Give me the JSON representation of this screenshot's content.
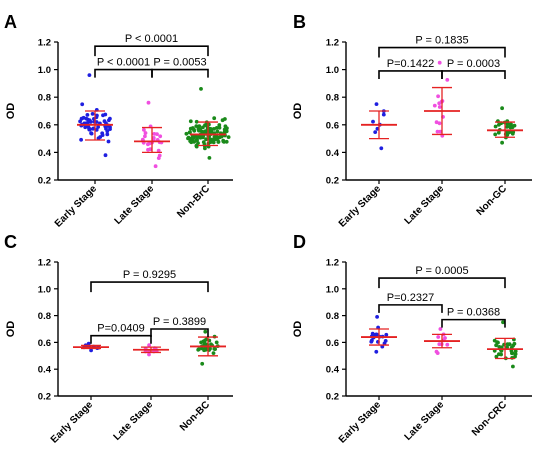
{
  "figure": {
    "colors": {
      "early_stage": "#1f1fe0",
      "late_stage": "#f04fe0",
      "non_cancer": "#1a8a1a",
      "summary_lines": "#e52222",
      "axes": "#000000"
    }
  },
  "chart_data": [
    {
      "type": "scatter",
      "panel_label": "A",
      "ylabel": "OD",
      "ylim": [
        0.2,
        1.2
      ],
      "yticks": [
        "0.2",
        "0.4",
        "0.6",
        "0.8",
        "1.0",
        "1.2"
      ],
      "categories": [
        "Early Stage",
        "Late Stage",
        "Non-BrC"
      ],
      "series": [
        {
          "category": "Early Stage",
          "n": 60,
          "mean": 0.6,
          "sd_low": 0.49,
          "sd_high": 0.7,
          "min": 0.38,
          "max": 0.96
        },
        {
          "category": "Late Stage",
          "n": 25,
          "mean": 0.48,
          "sd_low": 0.4,
          "sd_high": 0.58,
          "min": 0.3,
          "max": 0.76
        },
        {
          "category": "Non-BrC",
          "n": 110,
          "mean": 0.53,
          "sd_low": 0.45,
          "sd_high": 0.62,
          "min": 0.36,
          "max": 0.86
        }
      ],
      "comparisons": [
        {
          "pair": [
            0,
            1
          ],
          "label": "P < 0.0001",
          "y": 1.0
        },
        {
          "pair": [
            1,
            2
          ],
          "label": "P = 0.0053",
          "y": 1.0
        },
        {
          "pair": [
            0,
            2
          ],
          "label": "P < 0.0001",
          "y": 1.17
        }
      ]
    },
    {
      "type": "scatter",
      "panel_label": "B",
      "ylabel": "OD",
      "ylim": [
        0.2,
        1.2
      ],
      "yticks": [
        "0.2",
        "0.4",
        "0.6",
        "0.8",
        "1.0",
        "1.2"
      ],
      "categories": [
        "Early Stage",
        "Late Stage",
        "Non-GC"
      ],
      "series": [
        {
          "category": "Early Stage",
          "n": 8,
          "mean": 0.6,
          "sd_low": 0.5,
          "sd_high": 0.7,
          "min": 0.43,
          "max": 0.75
        },
        {
          "category": "Late Stage",
          "n": 14,
          "mean": 0.7,
          "sd_low": 0.53,
          "sd_high": 0.87,
          "min": 0.52,
          "max": 1.05
        },
        {
          "category": "Non-GC",
          "n": 30,
          "mean": 0.56,
          "sd_low": 0.51,
          "sd_high": 0.62,
          "min": 0.47,
          "max": 0.72
        }
      ],
      "comparisons": [
        {
          "pair": [
            0,
            1
          ],
          "label": "P=0.1422",
          "y": 0.99
        },
        {
          "pair": [
            1,
            2
          ],
          "label": "P = 0.0003",
          "y": 0.99
        },
        {
          "pair": [
            0,
            2
          ],
          "label": "P = 0.1835",
          "y": 1.16
        }
      ]
    },
    {
      "type": "scatter",
      "panel_label": "C",
      "ylabel": "OD",
      "ylim": [
        0.2,
        1.2
      ],
      "yticks": [
        "0.2",
        "0.4",
        "0.6",
        "0.8",
        "1.0",
        "1.2"
      ],
      "categories": [
        "Early Stage",
        "Late Stage",
        "Non-BC"
      ],
      "series": [
        {
          "category": "Early Stage",
          "n": 14,
          "mean": 0.565,
          "sd_low": 0.555,
          "sd_high": 0.578,
          "min": 0.54,
          "max": 0.59
        },
        {
          "category": "Late Stage",
          "n": 9,
          "mean": 0.545,
          "sd_low": 0.525,
          "sd_high": 0.565,
          "min": 0.51,
          "max": 0.58
        },
        {
          "category": "Non-BC",
          "n": 30,
          "mean": 0.57,
          "sd_low": 0.5,
          "sd_high": 0.64,
          "min": 0.44,
          "max": 0.68
        }
      ],
      "comparisons": [
        {
          "pair": [
            0,
            1
          ],
          "label": "P=0.0409",
          "y": 0.65
        },
        {
          "pair": [
            1,
            2
          ],
          "label": "P = 0.3899",
          "y": 0.7
        },
        {
          "pair": [
            0,
            2
          ],
          "label": "P = 0.9295",
          "y": 1.05
        }
      ]
    },
    {
      "type": "scatter",
      "panel_label": "D",
      "ylabel": "OD",
      "ylim": [
        0.2,
        1.2
      ],
      "yticks": [
        "0.2",
        "0.4",
        "0.6",
        "0.8",
        "1.0",
        "1.2"
      ],
      "categories": [
        "Early Stage",
        "Late Stage",
        "Non-CRC"
      ],
      "series": [
        {
          "category": "Early Stage",
          "n": 18,
          "mean": 0.64,
          "sd_low": 0.58,
          "sd_high": 0.7,
          "min": 0.53,
          "max": 0.79
        },
        {
          "category": "Late Stage",
          "n": 10,
          "mean": 0.61,
          "sd_low": 0.56,
          "sd_high": 0.66,
          "min": 0.52,
          "max": 0.7
        },
        {
          "category": "Non-CRC",
          "n": 34,
          "mean": 0.55,
          "sd_low": 0.48,
          "sd_high": 0.63,
          "min": 0.42,
          "max": 0.75
        }
      ],
      "comparisons": [
        {
          "pair": [
            0,
            1
          ],
          "label": "P=0.2327",
          "y": 0.88
        },
        {
          "pair": [
            1,
            2
          ],
          "label": "P = 0.0368",
          "y": 0.77
        },
        {
          "pair": [
            0,
            2
          ],
          "label": "P = 0.0005",
          "y": 1.08
        }
      ]
    }
  ]
}
